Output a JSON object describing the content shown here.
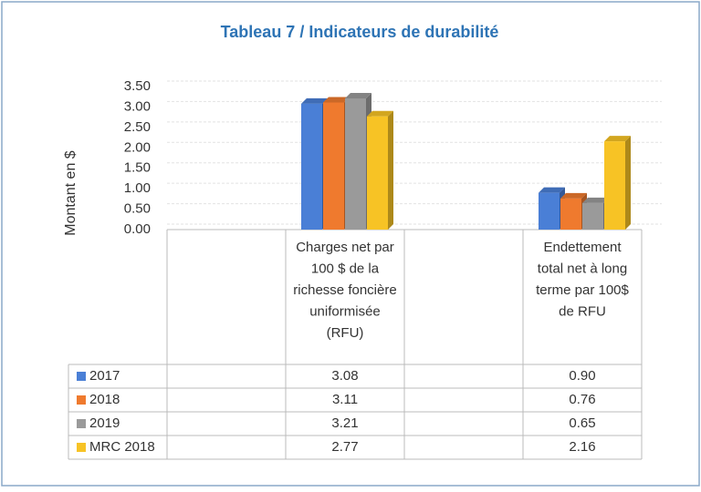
{
  "chart_data": {
    "type": "bar",
    "title": "Tableau 7 / Indicateurs de durabilité",
    "y_label": "Montant en $",
    "categories": [
      null,
      "Charges net par 100 $ de la richesse foncière uniformisée (RFU)",
      null,
      "Endettement total net à long terme par 100$ de RFU"
    ],
    "series": [
      {
        "name": "2017",
        "color": "#4a7fd6",
        "values": [
          null,
          3.08,
          null,
          0.9
        ],
        "value_labels": [
          null,
          "3.08",
          null,
          "0.90"
        ]
      },
      {
        "name": "2018",
        "color": "#ef7a2e",
        "values": [
          null,
          3.11,
          null,
          0.76
        ],
        "value_labels": [
          null,
          "3.11",
          null,
          "0.76"
        ]
      },
      {
        "name": "2019",
        "color": "#9a9a9a",
        "values": [
          null,
          3.21,
          null,
          0.65
        ],
        "value_labels": [
          null,
          "3.21",
          null,
          "0.65"
        ]
      },
      {
        "name": "MRC 2018",
        "color": "#f7c325",
        "values": [
          null,
          2.77,
          null,
          2.16
        ],
        "value_labels": [
          null,
          "2.77",
          null,
          "2.16"
        ]
      }
    ],
    "ylim": [
      0,
      3.5
    ],
    "yticks": [
      {
        "value": 0,
        "label": "0.00"
      },
      {
        "value": 0.5,
        "label": "0.50"
      },
      {
        "value": 1,
        "label": "1.00"
      },
      {
        "value": 1.5,
        "label": "1.50"
      },
      {
        "value": 2,
        "label": "2.00"
      },
      {
        "value": 2.5,
        "label": "2.50"
      },
      {
        "value": 3,
        "label": "3.00"
      },
      {
        "value": 3.5,
        "label": "3.50"
      }
    ],
    "grid": true
  }
}
